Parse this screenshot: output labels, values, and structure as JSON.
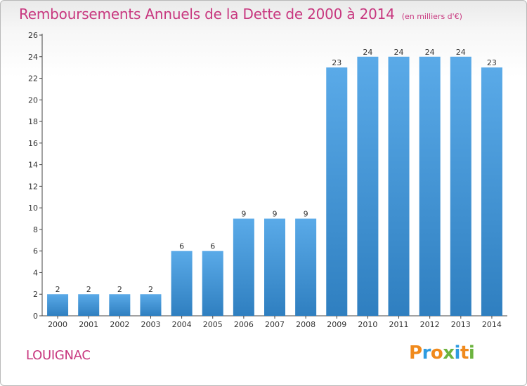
{
  "title": "Remboursements Annuels de la Dette de 2000 à 2014",
  "subtitle": "(en milliers d'€)",
  "commune": "LOUIGNAC",
  "brand": {
    "text": "Proxiti",
    "letter_colors": [
      "#f08a1c",
      "#2e9be0",
      "#f08a1c",
      "#6cb33f",
      "#2e9be0",
      "#f08a1c",
      "#6cb33f"
    ]
  },
  "colors": {
    "title": "#c8377f",
    "bar_light": "#5aaae8",
    "bar_dark": "#2f7fc0"
  },
  "chart_data": {
    "type": "bar",
    "categories": [
      "2000",
      "2001",
      "2002",
      "2003",
      "2004",
      "2005",
      "2006",
      "2007",
      "2008",
      "2009",
      "2010",
      "2011",
      "2012",
      "2013",
      "2014"
    ],
    "values": [
      2,
      2,
      2,
      2,
      6,
      6,
      9,
      9,
      9,
      23,
      24,
      24,
      24,
      24,
      23
    ],
    "data_labels": [
      "2",
      "2",
      "2",
      "2",
      "6",
      "6",
      "9",
      "9",
      "9",
      "23",
      "24",
      "24",
      "24",
      "24",
      "23"
    ],
    "ylim": [
      0,
      26
    ],
    "yticks": [
      0,
      2,
      4,
      6,
      8,
      10,
      12,
      14,
      16,
      18,
      20,
      22,
      24,
      26
    ],
    "grid": false,
    "legend": "none"
  }
}
